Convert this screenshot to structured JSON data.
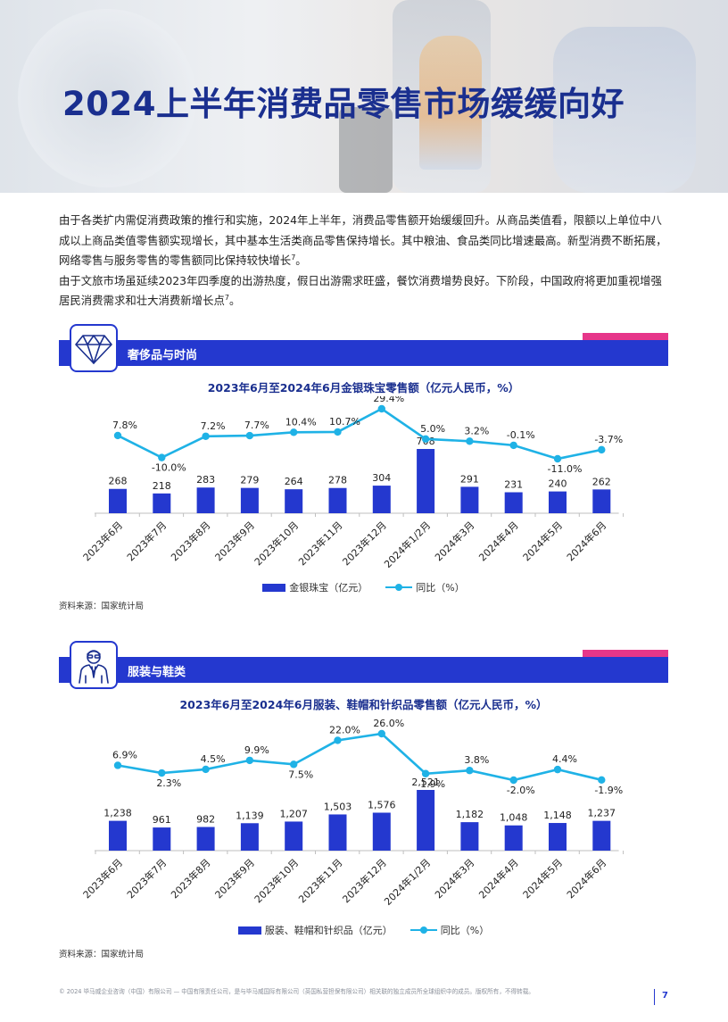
{
  "header": {
    "title": "2024上半年消费品零售市场缓缓向好"
  },
  "intro": {
    "paragraphs": [
      {
        "text": "由于各类扩内需促消费政策的推行和实施，2024年上半年，消费品零售额开始缓缓回升。从商品类值看，限额以上单位中八成以上商品类值零售额实现增长，其中基本生活类商品零售保持增长。其中粮油、食品类同比增速最高。新型消费不断拓展，网络零售与服务零售的零售额同比保持较快增长",
        "sup": "7",
        "tail": "。"
      },
      {
        "text": "由于文旅市场虽延续2023年四季度的出游热度，假日出游需求旺盛，餐饮消费增势良好。下阶段，中国政府将更加重视增强居民消费需求和壮大消费新增长点",
        "sup": "7",
        "tail": "。"
      }
    ]
  },
  "sections": [
    {
      "banner_title": "奢侈品与时尚",
      "icon": "diamond-icon",
      "chart_title": "2023年6月至2024年6月金银珠宝零售额（亿元人民币，%）",
      "legend_bar": "金银珠宝（亿元）",
      "legend_line": "同比（%）",
      "source": "资料来源：国家统计局"
    },
    {
      "banner_title": "服装与鞋类",
      "icon": "person-suit-icon",
      "chart_title": "2023年6月至2024年6月服装、鞋帽和针织品零售额（亿元人民币，%）",
      "legend_bar": "服装、鞋帽和针织品（亿元）",
      "legend_line": "同比（%）",
      "source": "资料来源：国家统计局"
    }
  ],
  "chart_data": [
    {
      "type": "bar",
      "title": "2023年6月至2024年6月金银珠宝零售额（亿元人民币，%）",
      "categories": [
        "2023年6月",
        "2023年7月",
        "2023年8月",
        "2023年9月",
        "2023年10月",
        "2023年11月",
        "2023年12月",
        "2024年1/2月",
        "2024年3月",
        "2024年4月",
        "2024年5月",
        "2024年6月"
      ],
      "series": [
        {
          "name": "金银珠宝（亿元）",
          "type": "bar",
          "values": [
            268,
            218,
            283,
            279,
            264,
            278,
            304,
            708,
            291,
            231,
            240,
            262
          ],
          "labels": [
            "268",
            "218",
            "283",
            "279",
            "264",
            "278",
            "304",
            "708",
            "291",
            "231",
            "240",
            "262"
          ]
        },
        {
          "name": "同比（%）",
          "type": "line",
          "values": [
            7.8,
            -10.0,
            7.2,
            7.7,
            10.4,
            10.7,
            29.4,
            5.0,
            3.2,
            -0.1,
            -11.0,
            -3.7
          ],
          "labels": [
            "7.8%",
            "-10.0%",
            "7.2%",
            "7.7%",
            "10.4%",
            "10.7%",
            "29.4%",
            "5.0%",
            "3.2%",
            "-0.1%",
            "-11.0%",
            "-3.7%"
          ]
        }
      ],
      "legend": "bottom-center",
      "grid": false,
      "colors": {
        "bar": "#2438cf",
        "line": "#1fb2e6"
      }
    },
    {
      "type": "bar",
      "title": "2023年6月至2024年6月服装、鞋帽和针织品零售额（亿元人民币，%）",
      "categories": [
        "2023年6月",
        "2023年7月",
        "2023年8月",
        "2023年9月",
        "2023年10月",
        "2023年11月",
        "2023年12月",
        "2024年1/2月",
        "2024年3月",
        "2024年4月",
        "2024年5月",
        "2024年6月"
      ],
      "series": [
        {
          "name": "服装、鞋帽和针织品（亿元）",
          "type": "bar",
          "values": [
            1238,
            961,
            982,
            1139,
            1207,
            1503,
            1576,
            2521,
            1182,
            1048,
            1148,
            1237
          ],
          "labels": [
            "1,238",
            "961",
            "982",
            "1,139",
            "1,207",
            "1,503",
            "1,576",
            "2,521",
            "1,182",
            "1,048",
            "1,148",
            "1,237"
          ]
        },
        {
          "name": "同比（%）",
          "type": "line",
          "values": [
            6.9,
            2.3,
            4.5,
            9.9,
            7.5,
            22.0,
            26.0,
            1.9,
            3.8,
            -2.0,
            4.4,
            -1.9
          ],
          "labels": [
            "6.9%",
            "2.3%",
            "4.5%",
            "9.9%",
            "7.5%",
            "22.0%",
            "26.0%",
            "1.9%",
            "3.8%",
            "-2.0%",
            "4.4%",
            "-1.9%"
          ]
        }
      ],
      "legend": "bottom-center",
      "grid": false,
      "colors": {
        "bar": "#2438cf",
        "line": "#1fb2e6"
      }
    }
  ],
  "footer": {
    "legal": "© 2024 毕马威企业咨询（中国）有限公司 — 中国有限责任公司，是与毕马威国际有限公司（英国私营担保有限公司）相关联的独立成员所全球组织中的成员。版权所有，不得转载。",
    "page_number": "7"
  }
}
